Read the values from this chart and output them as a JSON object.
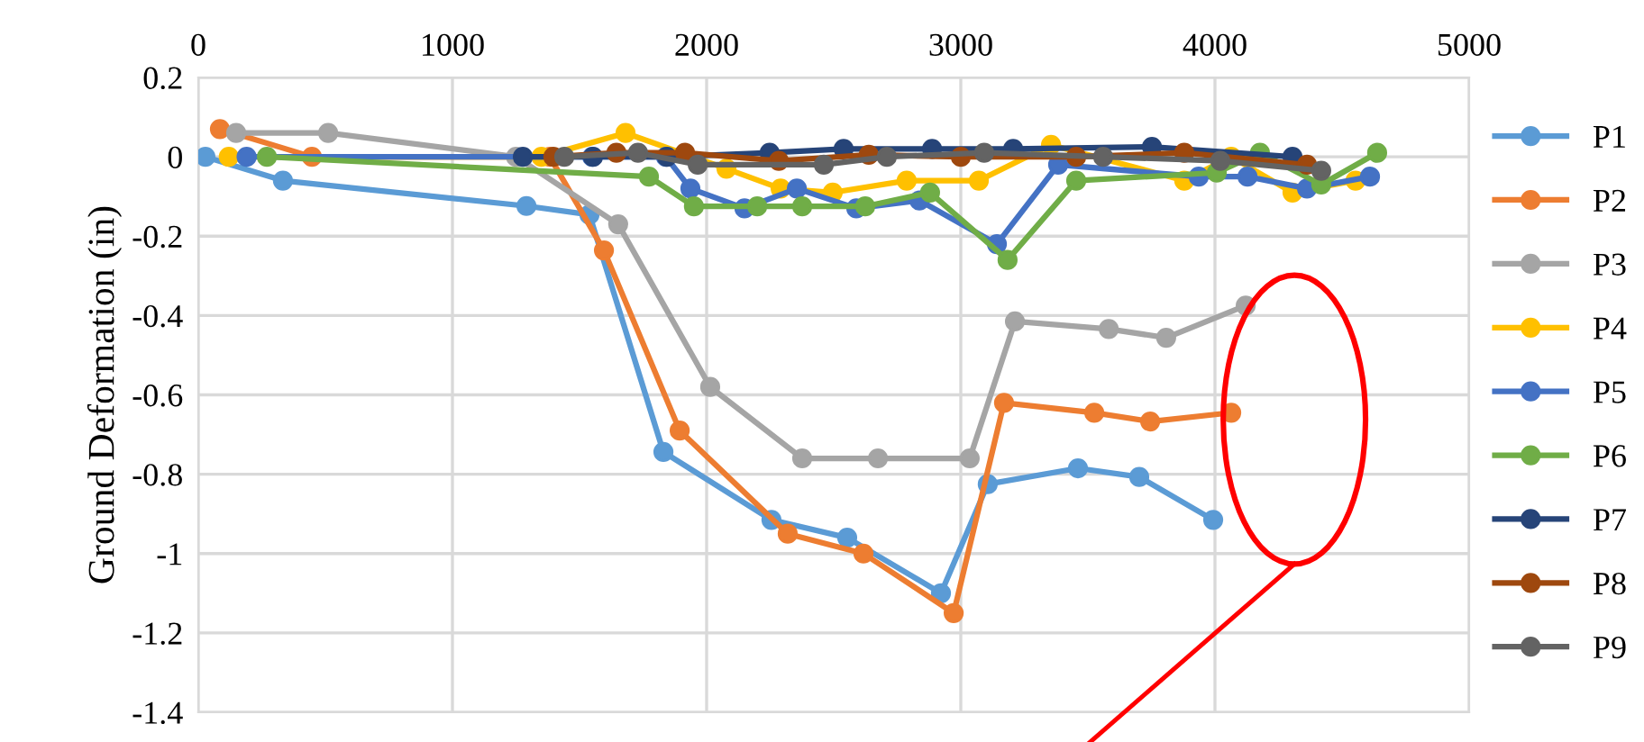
{
  "chart_data": {
    "type": "line",
    "ylabel": "Ground Deformation (in)",
    "xlim": [
      0,
      5000
    ],
    "xticks": [
      0,
      1000,
      2000,
      3000,
      4000,
      5000
    ],
    "ylim": [
      -1.4,
      0.2
    ],
    "yticks": [
      -1.4,
      -1.2,
      -1,
      -0.8,
      -0.6,
      -0.4,
      -0.2,
      0,
      0.2
    ],
    "grid": true,
    "legend": "right",
    "marker": "circle",
    "line_style": "solid",
    "series": [
      {
        "name": "P1",
        "color": "#5b9bd5",
        "x": [
          28,
          333,
          1291,
          1539,
          1830,
          2255,
          2553,
          2922,
          3106,
          3461,
          3702,
          3993
        ],
        "values": [
          0,
          -0.06,
          -0.124,
          -0.146,
          -0.744,
          -0.915,
          -0.96,
          -1.1,
          -0.825,
          -0.785,
          -0.807,
          -0.915
        ]
      },
      {
        "name": "P2",
        "color": "#ed7d31",
        "x": [
          85,
          447,
          1383,
          1596,
          1894,
          2319,
          2617,
          2972,
          3170,
          3525,
          3745,
          4064
        ],
        "values": [
          0.07,
          0,
          0,
          -0.236,
          -0.69,
          -0.95,
          -1.0,
          -1.15,
          -0.62,
          -0.645,
          -0.667,
          -0.645
        ]
      },
      {
        "name": "P3",
        "color": "#a5a5a5",
        "x": [
          149,
          511,
          1250,
          1652,
          2014,
          2376,
          2674,
          3035,
          3213,
          3582,
          3808,
          4121
        ],
        "values": [
          0.06,
          0.06,
          0,
          -0.17,
          -0.58,
          -0.76,
          -0.76,
          -0.76,
          -0.415,
          -0.434,
          -0.456,
          -0.375
        ]
      },
      {
        "name": "P4",
        "color": "#ffc000",
        "x": [
          120,
          1350,
          1681,
          2078,
          2291,
          2496,
          2787,
          3071,
          3355,
          3879,
          4064,
          4305,
          4553
        ],
        "values": [
          0,
          0,
          0.06,
          -0.03,
          -0.08,
          -0.09,
          -0.06,
          -0.06,
          0.03,
          -0.06,
          0,
          -0.09,
          -0.06
        ]
      },
      {
        "name": "P5",
        "color": "#4472c4",
        "x": [
          190,
          1550,
          1840,
          1936,
          2149,
          2355,
          2589,
          2837,
          3142,
          3383,
          3936,
          4128,
          4362,
          4610
        ],
        "values": [
          0,
          0,
          0,
          -0.08,
          -0.13,
          -0.08,
          -0.13,
          -0.11,
          -0.22,
          -0.02,
          -0.05,
          -0.05,
          -0.08,
          -0.05
        ]
      },
      {
        "name": "P6",
        "color": "#70ad47",
        "x": [
          270,
          1773,
          1950,
          2199,
          2376,
          2624,
          2879,
          3184,
          3454,
          4007,
          4177,
          4418,
          4638
        ],
        "values": [
          0,
          -0.05,
          -0.125,
          -0.125,
          -0.125,
          -0.125,
          -0.09,
          -0.26,
          -0.06,
          -0.04,
          0.01,
          -0.07,
          0.01
        ]
      },
      {
        "name": "P7",
        "color": "#264478",
        "x": [
          1277,
          1553,
          1844,
          2248,
          2539,
          2887,
          3206,
          3752,
          4305
        ],
        "values": [
          0,
          0,
          0,
          0.01,
          0.02,
          0.02,
          0.02,
          0.025,
          0
        ]
      },
      {
        "name": "P8",
        "color": "#9e480e",
        "x": [
          1397,
          1645,
          1915,
          2284,
          2638,
          3000,
          3454,
          3879,
          4362
        ],
        "values": [
          0,
          0.01,
          0.01,
          -0.01,
          0.005,
          0,
          0,
          0.01,
          -0.02
        ]
      },
      {
        "name": "P9",
        "color": "#636363",
        "x": [
          1440,
          1730,
          1965,
          2461,
          2709,
          3092,
          3560,
          4021,
          4418
        ],
        "values": [
          0,
          0.01,
          -0.02,
          -0.02,
          0,
          0.01,
          0,
          -0.01,
          -0.035
        ]
      }
    ]
  }
}
